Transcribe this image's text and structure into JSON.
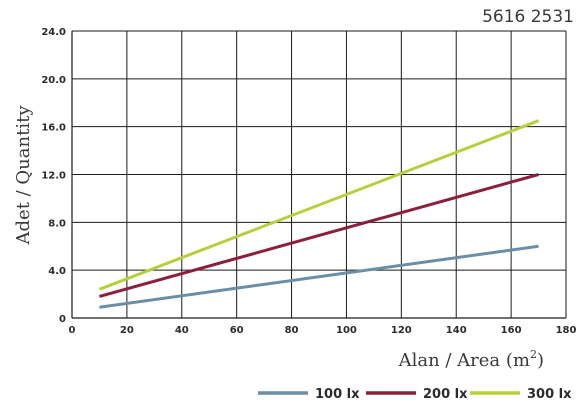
{
  "chart_data": {
    "type": "line",
    "title": "5616 2531",
    "xlabel": "Alan / Area (m",
    "xlabel_sup": "2",
    "xlabel_close": ")",
    "ylabel": "Adet / Quantity",
    "xlim": [
      0,
      180
    ],
    "ylim": [
      0,
      24
    ],
    "xticks": [
      "0",
      "20",
      "40",
      "60",
      "80",
      "100",
      "120",
      "140",
      "160",
      "180"
    ],
    "yticks": [
      "0",
      "4.0",
      "8.0",
      "12.0",
      "16.0",
      "20.0",
      "24.0"
    ],
    "grid": true,
    "legend_position": "bottom-right",
    "series": [
      {
        "name": "100 lx",
        "color": "#6a8ea8",
        "x": [
          10,
          170
        ],
        "y": [
          0.9,
          6.0
        ]
      },
      {
        "name": "200 lx",
        "color": "#8b1f3c",
        "x": [
          10,
          170
        ],
        "y": [
          1.8,
          12.0
        ]
      },
      {
        "name": "300 lx",
        "color": "#b6cf3a",
        "x": [
          10,
          170
        ],
        "y": [
          2.4,
          16.5
        ]
      }
    ]
  }
}
